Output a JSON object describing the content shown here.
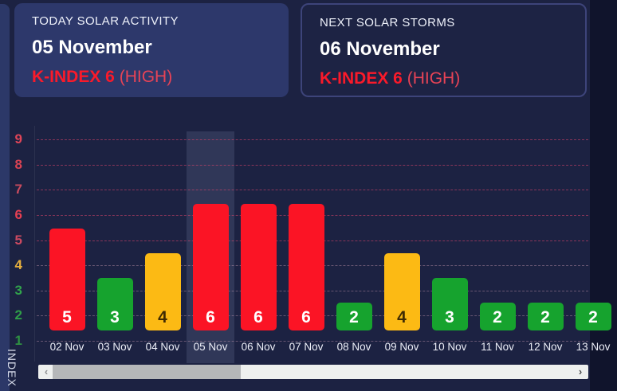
{
  "cards": {
    "today": {
      "title": "TODAY SOLAR ACTIVITY",
      "date": "05 November",
      "kindex": "K-INDEX 6",
      "severity": "(HIGH)"
    },
    "next": {
      "title": "NEXT SOLAR STORMS",
      "date": "06 November",
      "kindex": "K-INDEX 6",
      "severity": "(HIGH)"
    }
  },
  "chart_data": {
    "type": "bar",
    "title": "",
    "ylabel": "INDEX",
    "categories": [
      "02 Nov",
      "03 Nov",
      "04 Nov",
      "05 Nov",
      "06 Nov",
      "07 Nov",
      "08 Nov",
      "09 Nov",
      "10 Nov",
      "11 Nov",
      "12 Nov",
      "13 Nov"
    ],
    "values": [
      5,
      3,
      4,
      6,
      6,
      6,
      2,
      4,
      3,
      2,
      2,
      2
    ],
    "bar_colors": [
      "red",
      "green",
      "yellow",
      "red",
      "red",
      "red",
      "green",
      "yellow",
      "green",
      "green",
      "green",
      "green"
    ],
    "y_ticks": [
      9,
      8,
      7,
      6,
      5,
      4,
      3,
      2,
      1
    ],
    "y_tick_colors": [
      "#e04558",
      "#d94353",
      "#c94b5e",
      "#e63f52",
      "#cc4a61",
      "#e7b03e",
      "#31a44c",
      "#2f9e48",
      "#2f9142"
    ],
    "ylim": [
      0,
      9
    ],
    "grid": "dashed-horizontal",
    "highlighted_category": "05 Nov",
    "clipped_last_category": true
  },
  "colors": {
    "background": "#1c2242",
    "card_fill": "#2d386b",
    "red": "#fb1425",
    "green": "#16a32e",
    "yellow": "#fcba14",
    "kindex_red": "#fa1a2a"
  },
  "value_label_colors": {
    "red": "#ffffff",
    "green": "#ffffff",
    "yellow": "#3f2b03"
  },
  "scrollbar": {
    "left_arrow": "‹",
    "right_arrow": "›"
  }
}
